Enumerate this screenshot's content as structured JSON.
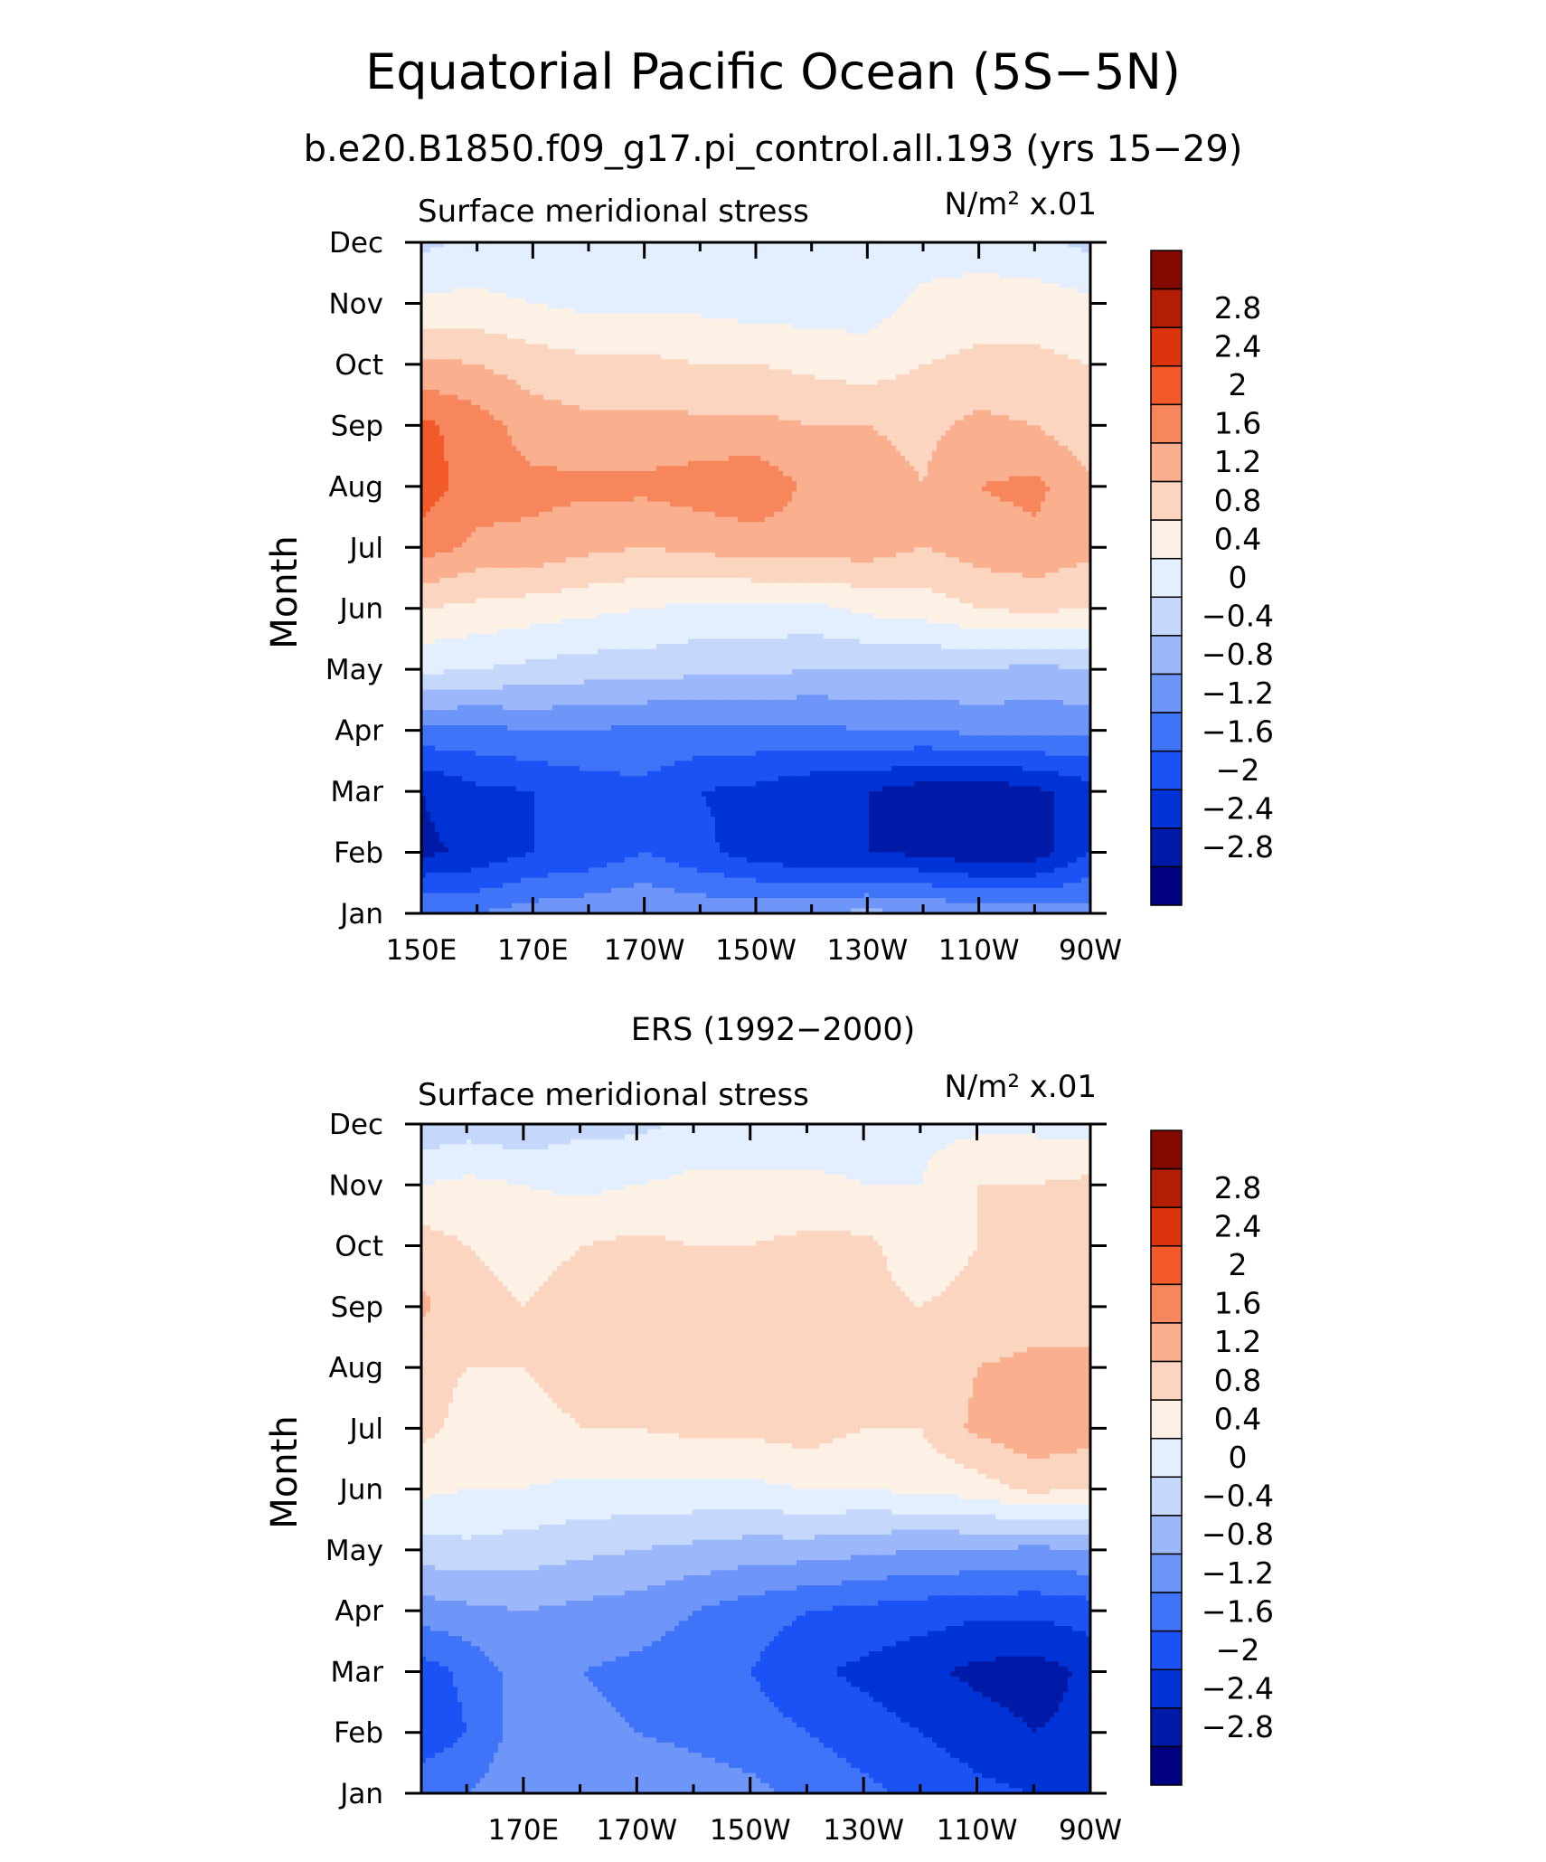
{
  "title": "Equatorial Pacific Ocean (5S−5N)",
  "subtitle": "b.e20.B1850.f09_g17.pi_control.all.193 (yrs 15−29)",
  "colors": [
    "#000080",
    "#001aa8",
    "#0033d6",
    "#1a52f5",
    "#3f74f8",
    "#6e96f9",
    "#9cb8fa",
    "#c5d8fb",
    "#e3efff",
    "#fdf1e6",
    "#fcd5c0",
    "#fab08e",
    "#f7865c",
    "#f25a2a",
    "#db330b",
    "#b31d05",
    "#820a00"
  ],
  "chart_data": [
    {
      "type": "heatmap",
      "panel_title": "",
      "variable_label": "Surface meridional stress",
      "units_label": "N/m² x.01",
      "ylabel": "Month",
      "xlabel": "",
      "x_ticks": [
        "150E",
        "170E",
        "170W",
        "150W",
        "130W",
        "110W",
        "90W"
      ],
      "x_tick_values": [
        150,
        170,
        190,
        210,
        230,
        250,
        270
      ],
      "xlim": [
        150,
        270
      ],
      "y_ticks": [
        "Jan",
        "Feb",
        "Mar",
        "Apr",
        "May",
        "Jun",
        "Jul",
        "Aug",
        "Sep",
        "Oct",
        "Nov",
        "Dec"
      ],
      "ylim": [
        1,
        12
      ],
      "colorbar_labels": [
        "2.8",
        "2.4",
        "2",
        "1.6",
        "1.2",
        "0.8",
        "0.4",
        "0",
        "−0.4",
        "−0.8",
        "−1.2",
        "−1.6",
        "−2",
        "−2.4",
        "−2.8"
      ],
      "levels": [
        -3.2,
        -2.8,
        -2.4,
        -2,
        -1.6,
        -1.2,
        -0.8,
        -0.4,
        0,
        0.4,
        0.8,
        1.2,
        1.6,
        2,
        2.4,
        2.8,
        3.2
      ],
      "grid_x": [
        150,
        160,
        170,
        180,
        190,
        200,
        210,
        220,
        230,
        240,
        250,
        260,
        270
      ],
      "values": [
        [
          -1.2,
          -1.2,
          -1.0,
          -0.9,
          -0.8,
          -0.9,
          -0.9,
          -0.8,
          -0.7,
          -0.8,
          -0.9,
          -1.0,
          -1.0
        ],
        [
          -2.5,
          -2.3,
          -2.0,
          -1.9,
          -1.6,
          -1.9,
          -2.2,
          -2.4,
          -2.4,
          -2.5,
          -2.7,
          -2.6,
          -2.0
        ],
        [
          -2.4,
          -2.1,
          -2.0,
          -1.8,
          -1.7,
          -2.0,
          -2.1,
          -2.3,
          -2.4,
          -2.6,
          -2.7,
          -2.5,
          -2.2
        ],
        [
          -1.3,
          -1.3,
          -1.2,
          -1.2,
          -1.3,
          -1.3,
          -1.3,
          -1.3,
          -1.2,
          -1.2,
          -1.1,
          -1.1,
          -1.1
        ],
        [
          0.1,
          0.0,
          -0.1,
          -0.2,
          -0.2,
          -0.3,
          -0.3,
          -0.4,
          -0.4,
          -0.4,
          -0.4,
          -0.5,
          -0.4
        ],
        [
          0.8,
          0.7,
          0.6,
          0.5,
          0.4,
          0.3,
          0.3,
          0.3,
          0.5,
          0.6,
          0.8,
          0.9,
          0.8
        ],
        [
          1.8,
          1.5,
          1.5,
          1.3,
          1.2,
          1.3,
          1.4,
          1.4,
          1.4,
          1.2,
          1.4,
          1.5,
          1.3
        ],
        [
          2.2,
          1.8,
          1.7,
          1.7,
          1.7,
          1.8,
          1.9,
          1.5,
          1.4,
          1.2,
          1.6,
          1.7,
          1.3
        ],
        [
          2.1,
          1.8,
          1.4,
          1.3,
          1.3,
          1.3,
          1.3,
          1.2,
          1.2,
          1.1,
          1.3,
          1.2,
          0.9
        ],
        [
          1.3,
          1.2,
          1.0,
          0.9,
          0.9,
          0.8,
          0.8,
          0.7,
          0.6,
          0.8,
          0.9,
          0.9,
          0.8
        ],
        [
          0.5,
          0.5,
          0.4,
          0.3,
          0.3,
          0.3,
          0.2,
          0.2,
          0.2,
          0.5,
          0.6,
          0.6,
          0.5
        ],
        [
          -0.1,
          0.1,
          0.1,
          0.1,
          0.1,
          0.0,
          0.0,
          0.1,
          0.1,
          0.2,
          0.2,
          0.1,
          -0.1
        ]
      ]
    },
    {
      "type": "heatmap",
      "panel_title": "ERS (1992−2000)",
      "variable_label": "Surface meridional stress",
      "units_label": "N/m² x.01",
      "ylabel": "Month",
      "xlabel": "",
      "x_ticks": [
        "170E",
        "170W",
        "150W",
        "130W",
        "110W",
        "90W"
      ],
      "x_tick_values": [
        170,
        190,
        210,
        230,
        250,
        270
      ],
      "xlim": [
        152,
        270
      ],
      "y_ticks": [
        "Jan",
        "Feb",
        "Mar",
        "Apr",
        "May",
        "Jun",
        "Jul",
        "Aug",
        "Sep",
        "Oct",
        "Nov",
        "Dec"
      ],
      "ylim": [
        1,
        12
      ],
      "colorbar_labels": [
        "2.8",
        "2.4",
        "2",
        "1.6",
        "1.2",
        "0.8",
        "0.4",
        "0",
        "−0.4",
        "−0.8",
        "−1.2",
        "−1.6",
        "−2",
        "−2.4",
        "−2.8"
      ],
      "levels": [
        -3.2,
        -2.8,
        -2.4,
        -2,
        -1.6,
        -1.2,
        -0.8,
        -0.4,
        0,
        0.4,
        0.8,
        1.2,
        1.6,
        2,
        2.4,
        2.8,
        3.2
      ],
      "grid_x": [
        152,
        160,
        170,
        180,
        190,
        200,
        210,
        220,
        230,
        240,
        250,
        260,
        270
      ],
      "values": [
        [
          -1.3,
          -1.2,
          -0.9,
          -0.8,
          -0.9,
          -1.0,
          -1.1,
          -1.3,
          -1.5,
          -1.7,
          -1.9,
          -2.0,
          -2.1
        ],
        [
          -1.9,
          -1.6,
          -1.0,
          -1.1,
          -1.2,
          -1.3,
          -1.4,
          -1.6,
          -1.8,
          -2.0,
          -2.2,
          -2.4,
          -2.3
        ],
        [
          -1.8,
          -1.5,
          -1.0,
          -1.2,
          -1.3,
          -1.4,
          -1.6,
          -1.9,
          -2.1,
          -2.3,
          -2.5,
          -2.6,
          -2.3
        ],
        [
          -1.0,
          -0.9,
          -0.8,
          -0.9,
          -1.0,
          -1.2,
          -1.4,
          -1.6,
          -1.7,
          -1.8,
          -1.9,
          -1.9,
          -1.8
        ],
        [
          -0.2,
          -0.1,
          -0.2,
          -0.3,
          -0.4,
          -0.5,
          -0.6,
          -0.6,
          -0.7,
          -0.8,
          -0.8,
          -0.9,
          -0.8
        ],
        [
          0.5,
          0.4,
          0.4,
          0.3,
          0.3,
          0.3,
          0.3,
          0.4,
          0.4,
          0.5,
          0.6,
          0.9,
          0.8
        ],
        [
          0.9,
          0.7,
          0.7,
          0.8,
          0.8,
          0.9,
          0.9,
          1.0,
          0.8,
          0.8,
          1.3,
          1.5,
          1.4
        ],
        [
          0.9,
          0.8,
          0.8,
          0.9,
          0.9,
          1.0,
          0.9,
          1.0,
          0.9,
          0.8,
          1.2,
          1.3,
          1.2
        ],
        [
          1.3,
          0.9,
          0.8,
          0.9,
          1.0,
          1.0,
          0.9,
          0.9,
          0.9,
          0.8,
          0.9,
          1.0,
          1.2
        ],
        [
          1.0,
          0.8,
          0.7,
          0.8,
          0.9,
          0.8,
          0.8,
          0.9,
          0.9,
          0.6,
          0.8,
          0.9,
          1.1
        ],
        [
          0.4,
          0.5,
          0.4,
          0.3,
          0.4,
          0.5,
          0.5,
          0.5,
          0.4,
          0.4,
          0.8,
          0.8,
          0.9
        ],
        [
          -0.3,
          -0.2,
          -0.3,
          -0.1,
          -0.1,
          0.1,
          0.1,
          0.1,
          0.2,
          0.3,
          0.3,
          0.3,
          0.2
        ]
      ]
    }
  ]
}
